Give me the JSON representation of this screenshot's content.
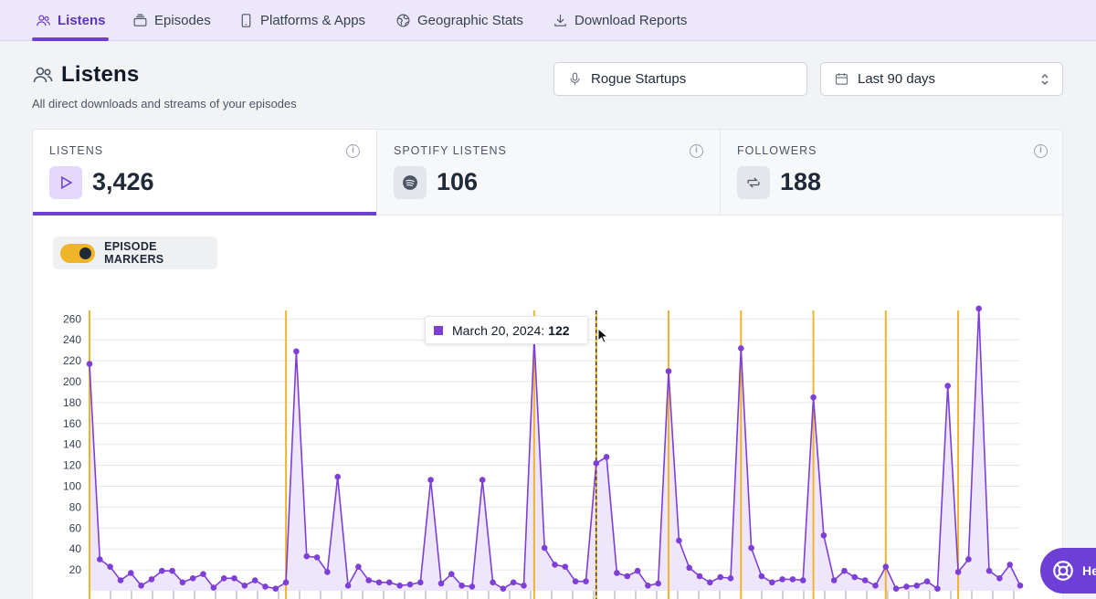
{
  "nav": {
    "tabs": [
      {
        "label": "Listens",
        "icon": "users-icon",
        "active": true
      },
      {
        "label": "Episodes",
        "icon": "layers-icon"
      },
      {
        "label": "Platforms & Apps",
        "icon": "phone-icon"
      },
      {
        "label": "Geographic Stats",
        "icon": "globe-icon"
      },
      {
        "label": "Download Reports",
        "icon": "download-icon"
      }
    ]
  },
  "header": {
    "title": "Listens",
    "subtitle": "All direct downloads and streams of your episodes",
    "podcast_select": "Rogue Startups",
    "range_select": "Last 90 days"
  },
  "stats": [
    {
      "label": "Listens",
      "value": "3,426",
      "icon": "play-icon"
    },
    {
      "label": "Spotify Listens",
      "value": "106",
      "icon": "spotify-icon"
    },
    {
      "label": "Followers",
      "value": "188",
      "icon": "refresh-icon"
    }
  ],
  "episode_markers": {
    "label": "EPISODE MARKERS",
    "enabled": true
  },
  "tooltip": {
    "date": "March 20, 2024:",
    "value": "122"
  },
  "help": {
    "label": "He"
  },
  "colors": {
    "accent": "#6d3fd6",
    "series": "#7e3fd6",
    "fill": "#ece3fb",
    "marker": "#f0b429"
  },
  "chart_data": {
    "type": "area",
    "yticks": [
      20,
      40,
      60,
      80,
      100,
      120,
      140,
      160,
      180,
      200,
      220,
      240,
      260
    ],
    "ylim": [
      0,
      270
    ],
    "grid": true,
    "series": [
      {
        "values": [
          217,
          30,
          23,
          10,
          17,
          5,
          11,
          19,
          19,
          8,
          12,
          16,
          3,
          12,
          12,
          5,
          10,
          4,
          2,
          8,
          229,
          33,
          32,
          18,
          109,
          5,
          23,
          10,
          8,
          8,
          5,
          6,
          8,
          106,
          7,
          16,
          5,
          4,
          106,
          8,
          2,
          8,
          5,
          240,
          41,
          25,
          23,
          9,
          9,
          122,
          128,
          17,
          14,
          19,
          5,
          7,
          210,
          48,
          22,
          14,
          8,
          13,
          12,
          232,
          41,
          14,
          8,
          11,
          11,
          10,
          185,
          53,
          10,
          19,
          13,
          10,
          5,
          23,
          2,
          4,
          5,
          9,
          2,
          196,
          18,
          30,
          270,
          19,
          12,
          25,
          5
        ]
      }
    ],
    "marker_indices": [
      0,
      19,
      43,
      49,
      56,
      63,
      70,
      77,
      84
    ]
  }
}
